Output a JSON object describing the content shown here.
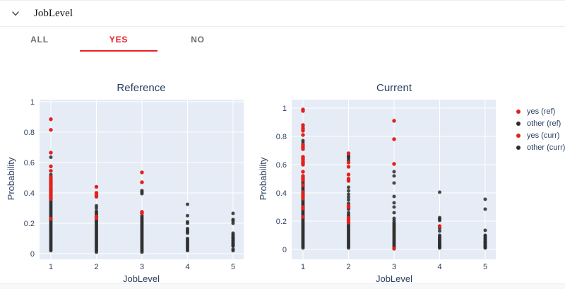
{
  "header": {
    "title": "JobLevel"
  },
  "tabs": [
    {
      "label": "ALL",
      "active": false
    },
    {
      "label": "YES",
      "active": true
    },
    {
      "label": "NO",
      "active": false
    }
  ],
  "colors": {
    "accent": "#ed1c24",
    "point_yes": "#e3211c",
    "point_other": "#2d2d2d",
    "plot_bg": "#e5ecf6",
    "grid": "#ffffff",
    "chart_text": "#2a3f5f",
    "tab_inactive": "#6e6e6e"
  },
  "legend": {
    "items": [
      {
        "label": "yes (ref)",
        "color": "#e3211c"
      },
      {
        "label": "other (ref)",
        "color": "#2d2d2d"
      },
      {
        "label": "yes (curr)",
        "color": "#e3211c"
      },
      {
        "label": "other (curr)",
        "color": "#2d2d2d"
      }
    ]
  },
  "chart_data": [
    {
      "type": "scatter",
      "title": "Reference",
      "xlabel": "JobLevel",
      "ylabel": "Probability",
      "x_ticks": [
        "1",
        "2",
        "3",
        "4",
        "5"
      ],
      "y_ticks": [
        "1",
        "0.8",
        "0.6",
        "0.4",
        "0.2",
        "0"
      ],
      "y_tick_values": [
        1,
        0.8,
        0.6,
        0.4,
        0.2,
        0
      ],
      "ylim": [
        0,
        1
      ],
      "grid": true,
      "series": [
        {
          "name": "yes (ref)",
          "color_key": "point_yes",
          "points_by_x": {
            "1": [
              0.885,
              0.815,
              0.665,
              0.575,
              0.545,
              0.505,
              0.49,
              0.475,
              0.465,
              0.455,
              0.44,
              0.43,
              0.42,
              0.41,
              0.4,
              0.385,
              0.37,
              0.36,
              0.23
            ],
            "2": [
              0.44,
              0.4,
              0.385,
              0.375,
              0.245,
              0.235
            ],
            "3": [
              0.535,
              0.47,
              0.275,
              0.265
            ]
          }
        },
        {
          "name": "other (ref)",
          "color_key": "point_other",
          "points_by_x": {
            "1": [
              0.635,
              0.52,
              0.51,
              0.5,
              0.49,
              0.48,
              0.47,
              0.46,
              0.45,
              0.44,
              0.43,
              0.42,
              0.41,
              0.4,
              0.39,
              0.38,
              0.37,
              0.36,
              0.35,
              0.34,
              0.33,
              0.32,
              0.31,
              0.3,
              0.29,
              0.28,
              0.27,
              0.26,
              0.25,
              0.24,
              0.23,
              0.22,
              0.21,
              0.2,
              0.19,
              0.18,
              0.17,
              0.16,
              0.15,
              0.14,
              0.13,
              0.12,
              0.11,
              0.1,
              0.09,
              0.08,
              0.07,
              0.06,
              0.05,
              0.04,
              0.03,
              0.02
            ],
            "2": [
              0.315,
              0.3,
              0.28,
              0.27,
              0.26,
              0.25,
              0.24,
              0.23,
              0.22,
              0.21,
              0.2,
              0.19,
              0.18,
              0.17,
              0.16,
              0.15,
              0.14,
              0.13,
              0.12,
              0.11,
              0.1,
              0.09,
              0.08,
              0.07,
              0.06,
              0.05,
              0.04,
              0.03,
              0.02,
              0.01
            ],
            "3": [
              0.415,
              0.405,
              0.395,
              0.25,
              0.24,
              0.23,
              0.22,
              0.21,
              0.2,
              0.19,
              0.18,
              0.17,
              0.16,
              0.15,
              0.14,
              0.13,
              0.12,
              0.11,
              0.1,
              0.09,
              0.08,
              0.07,
              0.06,
              0.05,
              0.04,
              0.03,
              0.02,
              0.01
            ],
            "4": [
              0.325,
              0.25,
              0.21,
              0.2,
              0.165,
              0.155,
              0.145,
              0.135,
              0.1,
              0.09,
              0.08,
              0.07,
              0.06,
              0.05,
              0.04,
              0.03,
              0.02
            ],
            "5": [
              0.265,
              0.225,
              0.215,
              0.2,
              0.135,
              0.125,
              0.115,
              0.105,
              0.1,
              0.09,
              0.085,
              0.075,
              0.07,
              0.06,
              0.055,
              0.05,
              0.03,
              0.02
            ]
          }
        }
      ]
    },
    {
      "type": "scatter",
      "title": "Current",
      "xlabel": "JobLevel",
      "ylabel": "Probability",
      "x_ticks": [
        "1",
        "2",
        "3",
        "4",
        "5"
      ],
      "y_ticks": [
        "1",
        "0.8",
        "0.6",
        "0.4",
        "0.2",
        "0"
      ],
      "y_tick_values": [
        1,
        0.8,
        0.6,
        0.4,
        0.2,
        0
      ],
      "ylim": [
        0,
        1
      ],
      "grid": true,
      "series": [
        {
          "name": "yes (curr)",
          "color_key": "point_yes",
          "points_by_x": {
            "1": [
              0.99,
              0.98,
              0.88,
              0.855,
              0.84,
              0.81,
              0.74,
              0.725,
              0.71,
              0.655,
              0.645,
              0.635,
              0.62,
              0.61,
              0.6,
              0.55,
              0.52,
              0.51,
              0.5,
              0.49,
              0.455,
              0.405,
              0.385,
              0.36,
              0.3,
              0.29,
              0.23
            ],
            "2": [
              0.68,
              0.615,
              0.585,
              0.53,
              0.5,
              0.485,
              0.31,
              0.3,
              0.225,
              0.21,
              0.19
            ],
            "3": [
              0.91,
              0.78,
              0.605,
              0.005
            ],
            "4": [
              0.165
            ]
          }
        },
        {
          "name": "other (curr)",
          "color_key": "point_other",
          "points_by_x": {
            "1": [
              0.875,
              0.86,
              0.845,
              0.77,
              0.755,
              0.73,
              0.72,
              0.63,
              0.61,
              0.48,
              0.47,
              0.46,
              0.45,
              0.44,
              0.43,
              0.42,
              0.41,
              0.4,
              0.39,
              0.38,
              0.37,
              0.36,
              0.35,
              0.34,
              0.33,
              0.32,
              0.31,
              0.3,
              0.29,
              0.28,
              0.27,
              0.26,
              0.25,
              0.24,
              0.23,
              0.22,
              0.21,
              0.2,
              0.19,
              0.18,
              0.17,
              0.16,
              0.15,
              0.14,
              0.13,
              0.12,
              0.11,
              0.1,
              0.09,
              0.08,
              0.07,
              0.06,
              0.05,
              0.04,
              0.03,
              0.02,
              0.01
            ],
            "2": [
              0.665,
              0.655,
              0.645,
              0.63,
              0.49,
              0.44,
              0.415,
              0.39,
              0.37,
              0.35,
              0.325,
              0.315,
              0.305,
              0.295,
              0.285,
              0.26,
              0.245,
              0.235,
              0.22,
              0.2,
              0.18,
              0.17,
              0.16,
              0.15,
              0.14,
              0.13,
              0.12,
              0.11,
              0.1,
              0.09,
              0.08,
              0.07,
              0.06,
              0.05,
              0.04,
              0.03,
              0.02,
              0.01
            ],
            "3": [
              0.55,
              0.52,
              0.47,
              0.375,
              0.33,
              0.3,
              0.26,
              0.22,
              0.205,
              0.19,
              0.18,
              0.17,
              0.16,
              0.15,
              0.14,
              0.13,
              0.12,
              0.11,
              0.1,
              0.09,
              0.08,
              0.07,
              0.06,
              0.05,
              0.04,
              0.03,
              0.02,
              0.01
            ],
            "4": [
              0.405,
              0.225,
              0.215,
              0.205,
              0.15,
              0.13,
              0.1,
              0.09,
              0.085,
              0.075,
              0.07,
              0.06,
              0.055,
              0.05,
              0.04,
              0.035,
              0.03,
              0.025,
              0.02,
              0.015,
              0.01
            ],
            "5": [
              0.355,
              0.285,
              0.135,
              0.1,
              0.095,
              0.085,
              0.08,
              0.07,
              0.065,
              0.055,
              0.05,
              0.045,
              0.04,
              0.03,
              0.025,
              0.02,
              0.015,
              0.01
            ]
          }
        }
      ]
    }
  ]
}
